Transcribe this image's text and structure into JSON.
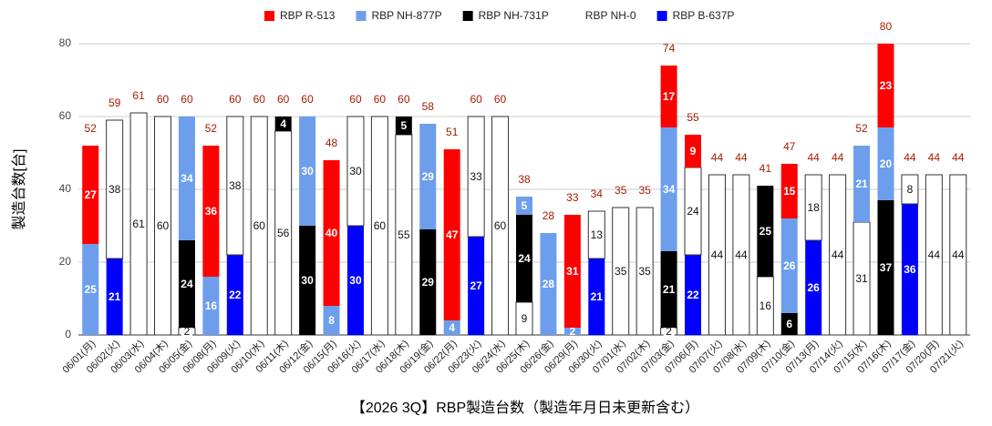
{
  "chart_data": {
    "type": "stacked-bar",
    "title": "【2026 3Q】RBP製造台数（製造年月日未更新含む）",
    "y_label": "製造台数[台]",
    "categories": [
      "06/01(月)",
      "06/02(火)",
      "06/03(水)",
      "06/04(木)",
      "06/05(金)",
      "06/08(月)",
      "06/09(火)",
      "06/10(水)",
      "06/11(木)",
      "06/12(金)",
      "06/15(月)",
      "06/16(火)",
      "06/17(水)",
      "06/18(木)",
      "06/19(金)",
      "06/22(月)",
      "06/23(火)",
      "06/24(水)",
      "06/25(木)",
      "06/26(金)",
      "06/29(月)",
      "06/30(火)",
      "07/01(水)",
      "07/02(木)",
      "07/03(金)",
      "07/06(月)",
      "07/07(火)",
      "07/08(水)",
      "07/09(木)",
      "07/10(金)",
      "07/13(月)",
      "07/14(火)",
      "07/15(水)",
      "07/16(木)",
      "07/17(金)",
      "07/20(月)",
      "07/21(火)"
    ],
    "series": [
      {
        "name": "RBP R-513",
        "color": "#ff0000",
        "values": [
          27,
          null,
          null,
          null,
          null,
          36,
          null,
          null,
          null,
          null,
          40,
          null,
          null,
          null,
          null,
          47,
          null,
          null,
          null,
          null,
          31,
          null,
          null,
          null,
          17,
          9,
          null,
          null,
          null,
          15,
          null,
          null,
          null,
          23,
          null,
          null,
          null
        ]
      },
      {
        "name": "RBP NH-877P",
        "color": "#6d9eeb",
        "values": [
          25,
          null,
          null,
          null,
          34,
          16,
          null,
          null,
          null,
          30,
          8,
          null,
          null,
          null,
          29,
          4,
          null,
          null,
          5,
          28,
          2,
          null,
          null,
          null,
          34,
          null,
          null,
          null,
          null,
          26,
          null,
          null,
          21,
          20,
          null,
          null,
          null
        ]
      },
      {
        "name": "RBP NH-731P",
        "color": "#000000",
        "values": [
          null,
          null,
          null,
          null,
          24,
          null,
          null,
          null,
          4,
          30,
          null,
          null,
          null,
          5,
          29,
          null,
          null,
          null,
          24,
          null,
          null,
          null,
          null,
          null,
          21,
          null,
          null,
          null,
          25,
          6,
          null,
          null,
          null,
          37,
          null,
          null,
          null
        ]
      },
      {
        "name": "RBP NH-0",
        "color": "#ffffff",
        "values": [
          null,
          38,
          61,
          60,
          2,
          null,
          38,
          60,
          56,
          null,
          null,
          30,
          60,
          55,
          null,
          null,
          33,
          60,
          9,
          null,
          null,
          13,
          35,
          35,
          2,
          24,
          44,
          44,
          16,
          null,
          18,
          44,
          31,
          null,
          8,
          44,
          44
        ]
      },
      {
        "name": "RBP B-637P",
        "color": "#0000ff",
        "values": [
          null,
          21,
          null,
          null,
          null,
          null,
          22,
          null,
          null,
          null,
          null,
          30,
          null,
          null,
          null,
          null,
          27,
          null,
          null,
          null,
          null,
          21,
          null,
          null,
          null,
          22,
          null,
          null,
          null,
          null,
          26,
          null,
          null,
          null,
          36,
          null,
          null
        ]
      }
    ],
    "totals": [
      52,
      59,
      61,
      60,
      60,
      52,
      60,
      60,
      60,
      60,
      48,
      60,
      60,
      60,
      58,
      51,
      60,
      60,
      38,
      28,
      33,
      34,
      35,
      35,
      74,
      55,
      44,
      44,
      41,
      47,
      44,
      44,
      52,
      80,
      44,
      44,
      44
    ],
    "ylim": [
      0,
      80
    ],
    "yticks": [
      0,
      20,
      40,
      60,
      80
    ],
    "grid": true,
    "legend": "top"
  }
}
